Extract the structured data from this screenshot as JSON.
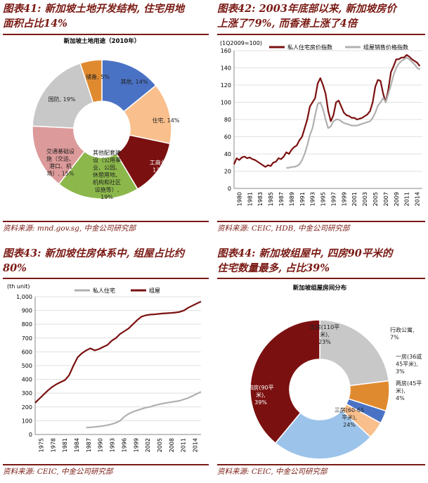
{
  "panels": {
    "p41": {
      "title_line1": "图表41: 新加坡土地开发结构, 住宅用地",
      "title_line2": "面积占比14%",
      "source": "资料来源: mnd.gov.sg, 中金公司研究部"
    },
    "p42": {
      "title_line1": "图表42: 2003年底部以来, 新加坡房价",
      "title_line2": "上涨了79%, 而香港上涨了4倍",
      "source": "资料来源: CEIC, HDB, 中金公司研究部"
    },
    "p43": {
      "title_line1": "图表43: 新加坡住房体系中, 组屋占比约",
      "title_line2": "80%",
      "source": "资料来源: CEIC, 中金公司研究部"
    },
    "p44": {
      "title_line1": "图表44: 新加坡组屋中, 四房90平米的",
      "title_line2": "住宅数量最多, 占比39%",
      "source": "资料来源: CEIC, 中金公司研究部"
    }
  },
  "colors": {
    "title": "#7a1a14",
    "dark_red": "#7b1010",
    "gray": "#b0b0b0",
    "blue": "#4a72c4",
    "peach": "#f9bf8d",
    "orange": "#e08a30",
    "pink": "#dd9a9a",
    "green": "#8cb84b",
    "light_blue": "#9cc3ea",
    "silver": "#c8c8c8"
  },
  "chart_data": [
    {
      "id": "p41",
      "type": "pie",
      "title": "新加坡土地用途（2010年）",
      "slices": [
        {
          "label": "其他, 14%",
          "value": 14,
          "color": "#4a72c4"
        },
        {
          "label": "住宅, 14%",
          "value": 14,
          "color": "#f9bf8d"
        },
        {
          "label": "工商业, 13%",
          "value": 13,
          "color": "#7b1010"
        },
        {
          "label": "其他配套建设（公用事业、公园、休憩用地、机构和社区设施等）, 19%",
          "value": 19,
          "color": "#8cb84b"
        },
        {
          "label": "交通基础设施（交运、港口、机场）, 15%",
          "value": 15,
          "color": "#dd9a9a"
        },
        {
          "label": "国防, 19%",
          "value": 19,
          "color": "#c8c8c8"
        },
        {
          "label": "储备, 5%",
          "value": 5,
          "color": "#e08a30"
        }
      ],
      "label_lines": [
        {
          "slice": 0,
          "lines": [
            "其他, 14%"
          ]
        },
        {
          "slice": 1,
          "lines": [
            "住宅, 14%"
          ]
        },
        {
          "slice": 2,
          "lines": [
            "工商业,",
            "13%"
          ]
        },
        {
          "slice": 3,
          "lines": [
            "其他配套建",
            "设（公用事",
            "业、公园、",
            "休憩用地、",
            "机构和社区",
            "设施等）,",
            "19%"
          ]
        },
        {
          "slice": 4,
          "lines": [
            "交通基础设",
            "施（交运、",
            "港口、机",
            "场）, 15%"
          ]
        },
        {
          "slice": 5,
          "lines": [
            "国防, 19%"
          ]
        },
        {
          "slice": 6,
          "lines": [
            "储备, 5%"
          ]
        }
      ]
    },
    {
      "id": "p42",
      "type": "line",
      "ylabel": "(1Q2009=100)",
      "ylim": [
        0,
        160
      ],
      "yticks": [
        0,
        20,
        40,
        60,
        80,
        100,
        120,
        140,
        160
      ],
      "xlim": [
        1980,
        2016
      ],
      "xtick_labels": [
        "1980",
        "1981",
        "1983",
        "1985",
        "1987",
        "1989",
        "1991",
        "1993",
        "1995",
        "1997",
        "1999",
        "2001",
        "2003",
        "2005",
        "2007",
        "2009",
        "2011",
        "2014"
      ],
      "legend": [
        "私人住宅房价指数",
        "组屋销售价格指数"
      ],
      "series": [
        {
          "name": "私人住宅房价指数",
          "color": "#7b1010",
          "x": [
            1980,
            1980.5,
            1981,
            1981.5,
            1982,
            1982.5,
            1983,
            1983.5,
            1984,
            1984.5,
            1985,
            1985.5,
            1986,
            1986.5,
            1987,
            1987.5,
            1988,
            1988.5,
            1989,
            1989.5,
            1990,
            1990.5,
            1991,
            1991.5,
            1992,
            1992.5,
            1993,
            1993.5,
            1994,
            1994.5,
            1995,
            1995.5,
            1996,
            1996.5,
            1997,
            1997.5,
            1998,
            1998.5,
            1999,
            1999.5,
            2000,
            2000.5,
            2001,
            2001.5,
            2002,
            2002.5,
            2003,
            2003.5,
            2004,
            2004.5,
            2005,
            2005.5,
            2006,
            2006.5,
            2007,
            2007.5,
            2008,
            2008.5,
            2009,
            2009.5,
            2010,
            2010.5,
            2011,
            2011.5,
            2012,
            2012.5,
            2013,
            2013.5,
            2014,
            2014.5,
            2015,
            2015.5
          ],
          "y": [
            28,
            35,
            33,
            36,
            37,
            35,
            36,
            34,
            33,
            31,
            29,
            27,
            25,
            27,
            26,
            30,
            31,
            35,
            34,
            37,
            42,
            40,
            45,
            48,
            50,
            56,
            60,
            70,
            80,
            95,
            100,
            105,
            122,
            128,
            120,
            110,
            90,
            78,
            85,
            100,
            102,
            95,
            88,
            85,
            84,
            82,
            82,
            80,
            81,
            82,
            84,
            86,
            90,
            100,
            118,
            126,
            125,
            110,
            100,
            115,
            135,
            142,
            150,
            150,
            152,
            152,
            155,
            153,
            150,
            148,
            146,
            142
          ]
        },
        {
          "name": "组屋销售价格指数",
          "color": "#b0b0b0",
          "x": [
            1990,
            1990.5,
            1991,
            1991.5,
            1992,
            1992.5,
            1993,
            1993.5,
            1994,
            1994.5,
            1995,
            1995.5,
            1996,
            1996.5,
            1997,
            1997.5,
            1998,
            1998.5,
            1999,
            1999.5,
            2000,
            2000.5,
            2001,
            2001.5,
            2002,
            2002.5,
            2003,
            2003.5,
            2004,
            2004.5,
            2005,
            2005.5,
            2006,
            2006.5,
            2007,
            2007.5,
            2008,
            2008.5,
            2009,
            2009.5,
            2010,
            2010.5,
            2011,
            2011.5,
            2012,
            2012.5,
            2013,
            2013.5,
            2014,
            2014.5,
            2015,
            2015.5
          ],
          "y": [
            24,
            24,
            25,
            25,
            26,
            28,
            33,
            40,
            50,
            62,
            70,
            85,
            98,
            100,
            92,
            80,
            70,
            72,
            78,
            80,
            80,
            78,
            76,
            75,
            74,
            73,
            73,
            73,
            74,
            75,
            76,
            77,
            78,
            82,
            88,
            96,
            100,
            105,
            100,
            110,
            120,
            132,
            140,
            145,
            148,
            150,
            152,
            150,
            147,
            144,
            140,
            138
          ]
        }
      ]
    },
    {
      "id": "p43",
      "type": "line",
      "ylabel": "(th unit)",
      "ylim": [
        0,
        1000
      ],
      "yticks": [
        0,
        100,
        200,
        300,
        400,
        500,
        600,
        700,
        800,
        900,
        1000
      ],
      "ytick_labels": [
        "0",
        "100",
        "200",
        "300",
        "400",
        "500",
        "600",
        "700",
        "800",
        "900",
        "1,000"
      ],
      "xlim": [
        1975,
        2014
      ],
      "xtick_labels": [
        "1975",
        "1978",
        "1981",
        "1984",
        "1987",
        "1990",
        "1993",
        "1996",
        "1999",
        "2002",
        "2005",
        "2008",
        "2011",
        "2014"
      ],
      "legend": [
        "私人住宅",
        "组屋"
      ],
      "series": [
        {
          "name": "私人住宅",
          "color": "#b0b0b0",
          "x": [
            1987,
            1988,
            1989,
            1990,
            1991,
            1992,
            1993,
            1994,
            1995,
            1996,
            1997,
            1998,
            1999,
            2000,
            2001,
            2002,
            2003,
            2004,
            2005,
            2006,
            2007,
            2008,
            2009,
            2010,
            2011,
            2012,
            2013,
            2014
          ],
          "y": [
            50,
            52,
            55,
            58,
            62,
            68,
            75,
            85,
            100,
            130,
            150,
            165,
            175,
            185,
            195,
            200,
            210,
            218,
            225,
            230,
            235,
            240,
            245,
            255,
            265,
            280,
            295,
            310
          ]
        },
        {
          "name": "组屋",
          "color": "#7b1010",
          "x": [
            1975,
            1976,
            1977,
            1978,
            1979,
            1980,
            1981,
            1982,
            1983,
            1984,
            1985,
            1986,
            1987,
            1988,
            1989,
            1990,
            1991,
            1992,
            1993,
            1994,
            1995,
            1996,
            1997,
            1998,
            1999,
            2000,
            2001,
            2002,
            2003,
            2004,
            2005,
            2006,
            2007,
            2008,
            2009,
            2010,
            2011,
            2012,
            2013,
            2014
          ],
          "y": [
            230,
            260,
            290,
            320,
            345,
            365,
            380,
            395,
            430,
            500,
            560,
            590,
            610,
            625,
            610,
            620,
            635,
            650,
            680,
            700,
            730,
            750,
            770,
            800,
            830,
            855,
            865,
            870,
            872,
            875,
            878,
            880,
            882,
            885,
            890,
            900,
            920,
            935,
            950,
            965
          ]
        }
      ]
    },
    {
      "id": "p44",
      "type": "pie",
      "title": "新加坡组屋房间分布",
      "slices": [
        {
          "label": "五房(110平米), 23%",
          "value": 23,
          "color": "#c8c8c8"
        },
        {
          "label": "行政公寓, 7%",
          "value": 7,
          "color": "#e08a30"
        },
        {
          "label": "一房(36或45平米), 3%",
          "value": 3,
          "color": "#4a72c4"
        },
        {
          "label": "两房(45平米), 4%",
          "value": 4,
          "color": "#f9bf8d"
        },
        {
          "label": "三房(60-65平米), 24%",
          "value": 24,
          "color": "#9cc3ea"
        },
        {
          "label": "四房(90平米), 39%",
          "value": 39,
          "color": "#7b1010"
        }
      ],
      "label_lines": [
        {
          "slice": 0,
          "lines": [
            "五房(110平",
            "米),",
            "23%"
          ]
        },
        {
          "slice": 1,
          "lines": [
            "行政公寓,",
            "7%"
          ]
        },
        {
          "slice": 2,
          "lines": [
            "一房(36或",
            "45平米),",
            "3%"
          ]
        },
        {
          "slice": 3,
          "lines": [
            "两房(45平",
            "米),",
            "4%"
          ]
        },
        {
          "slice": 4,
          "lines": [
            "三房(60-65",
            "平米),",
            "24%"
          ]
        },
        {
          "slice": 5,
          "lines": [
            "四房(90平",
            "米),",
            "39%"
          ]
        }
      ]
    }
  ]
}
